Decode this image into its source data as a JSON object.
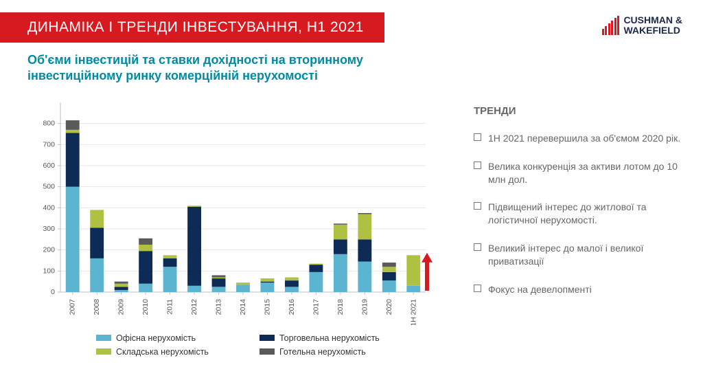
{
  "header": {
    "title": "ДИНАМІКА І ТРЕНДИ ІНВЕСТУВАННЯ, H1 2021",
    "logo_company": "CUSHMAN &",
    "logo_company2": "WAKEFIELD"
  },
  "subtitle": "Об'єми інвестицій та ставки дохідності на вторинному інвестиційному ринку комерційній нерухомості",
  "chart": {
    "type": "stacked-bar",
    "categories": [
      "2007",
      "2008",
      "2009",
      "2010",
      "2011",
      "2012",
      "2013",
      "2014",
      "2015",
      "2016",
      "2017",
      "2018",
      "2019",
      "2020",
      "1H 2021"
    ],
    "series": [
      {
        "name": "Офісна нерухомість",
        "color": "#5bb5d1",
        "values": [
          500,
          160,
          10,
          40,
          120,
          30,
          25,
          35,
          45,
          25,
          95,
          180,
          145,
          55,
          30
        ]
      },
      {
        "name": "Торговельна нерухомість",
        "color": "#0e2b56",
        "values": [
          255,
          145,
          15,
          155,
          40,
          375,
          40,
          0,
          5,
          30,
          35,
          70,
          105,
          40,
          0
        ]
      },
      {
        "name": "Складська нерухомість",
        "color": "#b0c043",
        "values": [
          15,
          85,
          15,
          30,
          15,
          5,
          5,
          10,
          15,
          15,
          5,
          70,
          120,
          25,
          145
        ]
      },
      {
        "name": "Готельна нерухомість",
        "color": "#5a5a5a",
        "values": [
          45,
          0,
          10,
          30,
          0,
          0,
          10,
          0,
          0,
          0,
          0,
          5,
          5,
          20,
          0
        ]
      }
    ],
    "ylim": [
      0,
      900
    ],
    "ytick_step": 100,
    "grid_color": "#e6e6e6",
    "axis_color": "#bfbfbf",
    "bar_width": 0.56,
    "background_color": "#ffffff",
    "label_fontsize": 10.5,
    "arrow_color": "#d71920"
  },
  "trends": {
    "title": "ТРЕНДИ",
    "items": [
      "1H 2021 перевершила за об'ємом 2020 рік.",
      "Велика конкуренція за активи лотом до 10 млн дол.",
      "Підвищений інтерес до житлової та логістичної нерухомості.",
      "Великий інтерес до малої і великої приватизації",
      "Фокус на девелопменті"
    ]
  }
}
